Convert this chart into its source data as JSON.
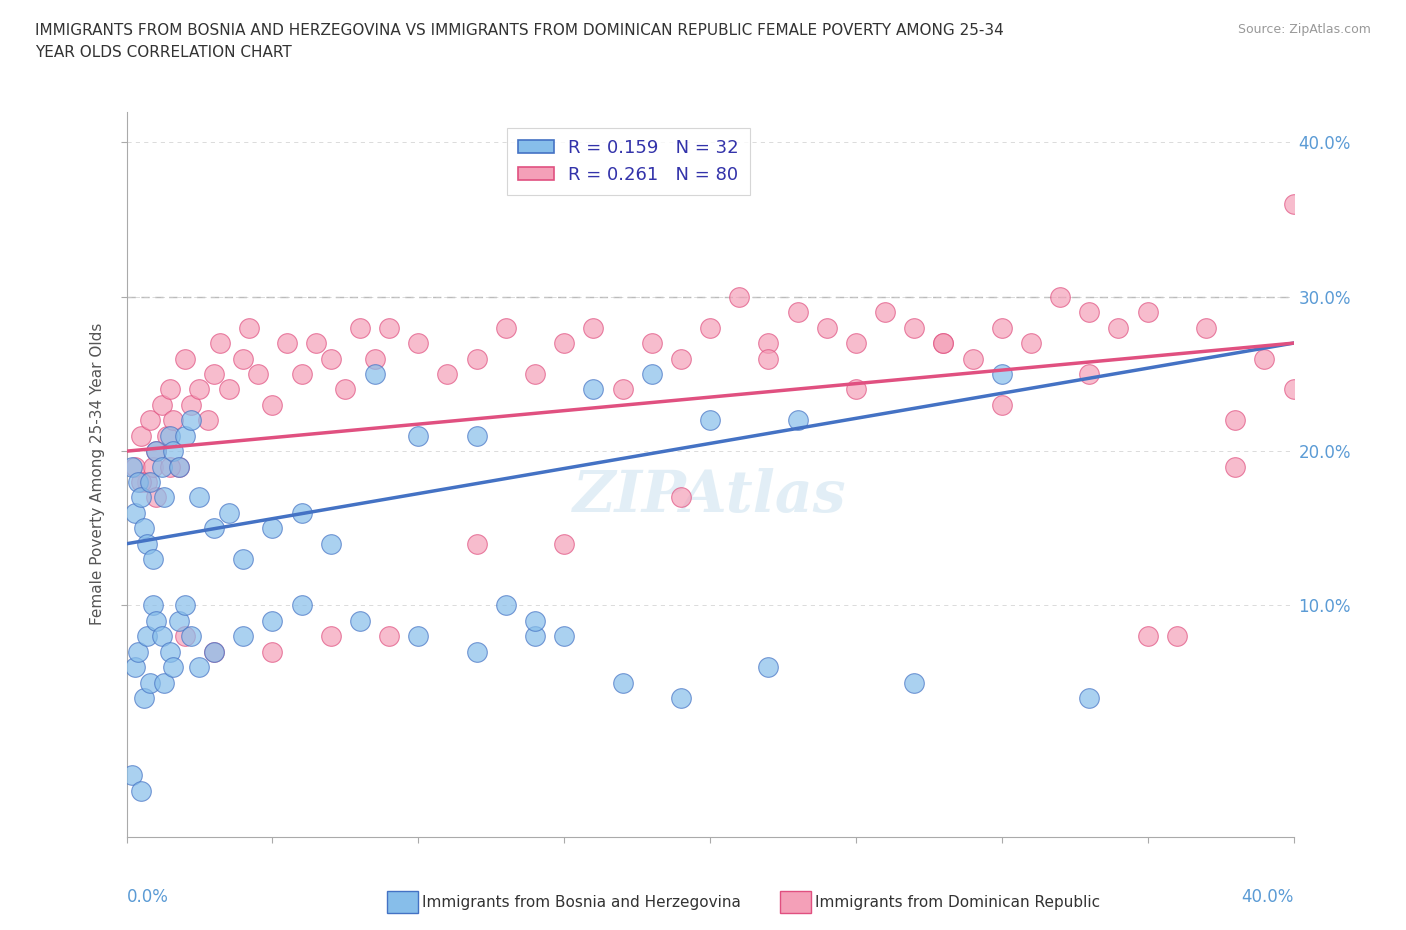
{
  "title_line1": "IMMIGRANTS FROM BOSNIA AND HERZEGOVINA VS IMMIGRANTS FROM DOMINICAN REPUBLIC FEMALE POVERTY AMONG 25-34",
  "title_line2": "YEAR OLDS CORRELATION CHART",
  "source": "Source: ZipAtlas.com",
  "ylabel": "Female Poverty Among 25-34 Year Olds",
  "legend_label1": "Immigrants from Bosnia and Herzegovina",
  "legend_label2": "Immigrants from Dominican Republic",
  "R1": 0.159,
  "N1": 32,
  "R2": 0.261,
  "N2": 80,
  "color1": "#87BEEA",
  "color2": "#F4A0B8",
  "trendline1_color": "#4472C4",
  "trendline2_color": "#E05080",
  "watermark": "ZIPAtlas",
  "xlim": [
    0.0,
    0.4
  ],
  "ylim": [
    -0.05,
    0.42
  ],
  "yticks": [
    0.1,
    0.2,
    0.3,
    0.4
  ],
  "ytick_labels": [
    "10.0%",
    "20.0%",
    "30.0%",
    "40.0%"
  ],
  "bosnia_x": [
    0.002,
    0.003,
    0.004,
    0.005,
    0.006,
    0.007,
    0.008,
    0.009,
    0.01,
    0.012,
    0.013,
    0.015,
    0.016,
    0.018,
    0.02,
    0.022,
    0.025,
    0.03,
    0.035,
    0.04,
    0.05,
    0.06,
    0.07,
    0.085,
    0.1,
    0.12,
    0.14,
    0.16,
    0.18,
    0.2,
    0.23,
    0.3
  ],
  "bosnia_y": [
    0.19,
    0.16,
    0.18,
    0.17,
    0.15,
    0.14,
    0.18,
    0.13,
    0.2,
    0.19,
    0.17,
    0.21,
    0.2,
    0.19,
    0.21,
    0.22,
    0.17,
    0.15,
    0.16,
    0.13,
    0.15,
    0.16,
    0.14,
    0.25,
    0.21,
    0.21,
    0.08,
    0.24,
    0.25,
    0.22,
    0.22,
    0.25
  ],
  "bosnia_x_low": [
    0.002,
    0.003,
    0.004,
    0.005,
    0.006,
    0.007,
    0.008,
    0.009,
    0.01,
    0.012,
    0.013,
    0.015,
    0.016,
    0.018,
    0.02,
    0.022,
    0.025,
    0.03,
    0.04,
    0.05,
    0.06,
    0.08,
    0.1,
    0.12,
    0.13,
    0.14,
    0.15,
    0.17,
    0.19,
    0.22,
    0.27,
    0.33
  ],
  "bosnia_y_low": [
    -0.01,
    0.06,
    0.07,
    -0.02,
    0.04,
    0.08,
    0.05,
    0.1,
    0.09,
    0.08,
    0.05,
    0.07,
    0.06,
    0.09,
    0.1,
    0.08,
    0.06,
    0.07,
    0.08,
    0.09,
    0.1,
    0.09,
    0.08,
    0.07,
    0.1,
    0.09,
    0.08,
    0.05,
    0.04,
    0.06,
    0.05,
    0.04
  ],
  "dominican_x": [
    0.003,
    0.005,
    0.007,
    0.008,
    0.009,
    0.01,
    0.012,
    0.014,
    0.015,
    0.016,
    0.018,
    0.02,
    0.022,
    0.025,
    0.028,
    0.03,
    0.032,
    0.035,
    0.04,
    0.042,
    0.045,
    0.05,
    0.055,
    0.06,
    0.065,
    0.07,
    0.075,
    0.08,
    0.085,
    0.09,
    0.1,
    0.11,
    0.12,
    0.13,
    0.14,
    0.15,
    0.16,
    0.17,
    0.18,
    0.19,
    0.2,
    0.21,
    0.22,
    0.23,
    0.24,
    0.25,
    0.26,
    0.27,
    0.28,
    0.29,
    0.3,
    0.31,
    0.32,
    0.33,
    0.34,
    0.35,
    0.36,
    0.37,
    0.38,
    0.39,
    0.4,
    0.4,
    0.38,
    0.35,
    0.33,
    0.3,
    0.28,
    0.25,
    0.22,
    0.19,
    0.15,
    0.12,
    0.09,
    0.07,
    0.05,
    0.03,
    0.02,
    0.015,
    0.01,
    0.005
  ],
  "dominican_y": [
    0.19,
    0.21,
    0.18,
    0.22,
    0.19,
    0.2,
    0.23,
    0.21,
    0.24,
    0.22,
    0.19,
    0.26,
    0.23,
    0.24,
    0.22,
    0.25,
    0.27,
    0.24,
    0.26,
    0.28,
    0.25,
    0.23,
    0.27,
    0.25,
    0.27,
    0.26,
    0.24,
    0.28,
    0.26,
    0.28,
    0.27,
    0.25,
    0.26,
    0.28,
    0.25,
    0.27,
    0.28,
    0.24,
    0.27,
    0.26,
    0.28,
    0.3,
    0.27,
    0.29,
    0.28,
    0.27,
    0.29,
    0.28,
    0.27,
    0.26,
    0.28,
    0.27,
    0.3,
    0.29,
    0.28,
    0.29,
    0.08,
    0.28,
    0.19,
    0.26,
    0.24,
    0.36,
    0.22,
    0.08,
    0.25,
    0.23,
    0.27,
    0.24,
    0.26,
    0.17,
    0.14,
    0.14,
    0.08,
    0.08,
    0.07,
    0.07,
    0.08,
    0.19,
    0.17,
    0.18
  ]
}
